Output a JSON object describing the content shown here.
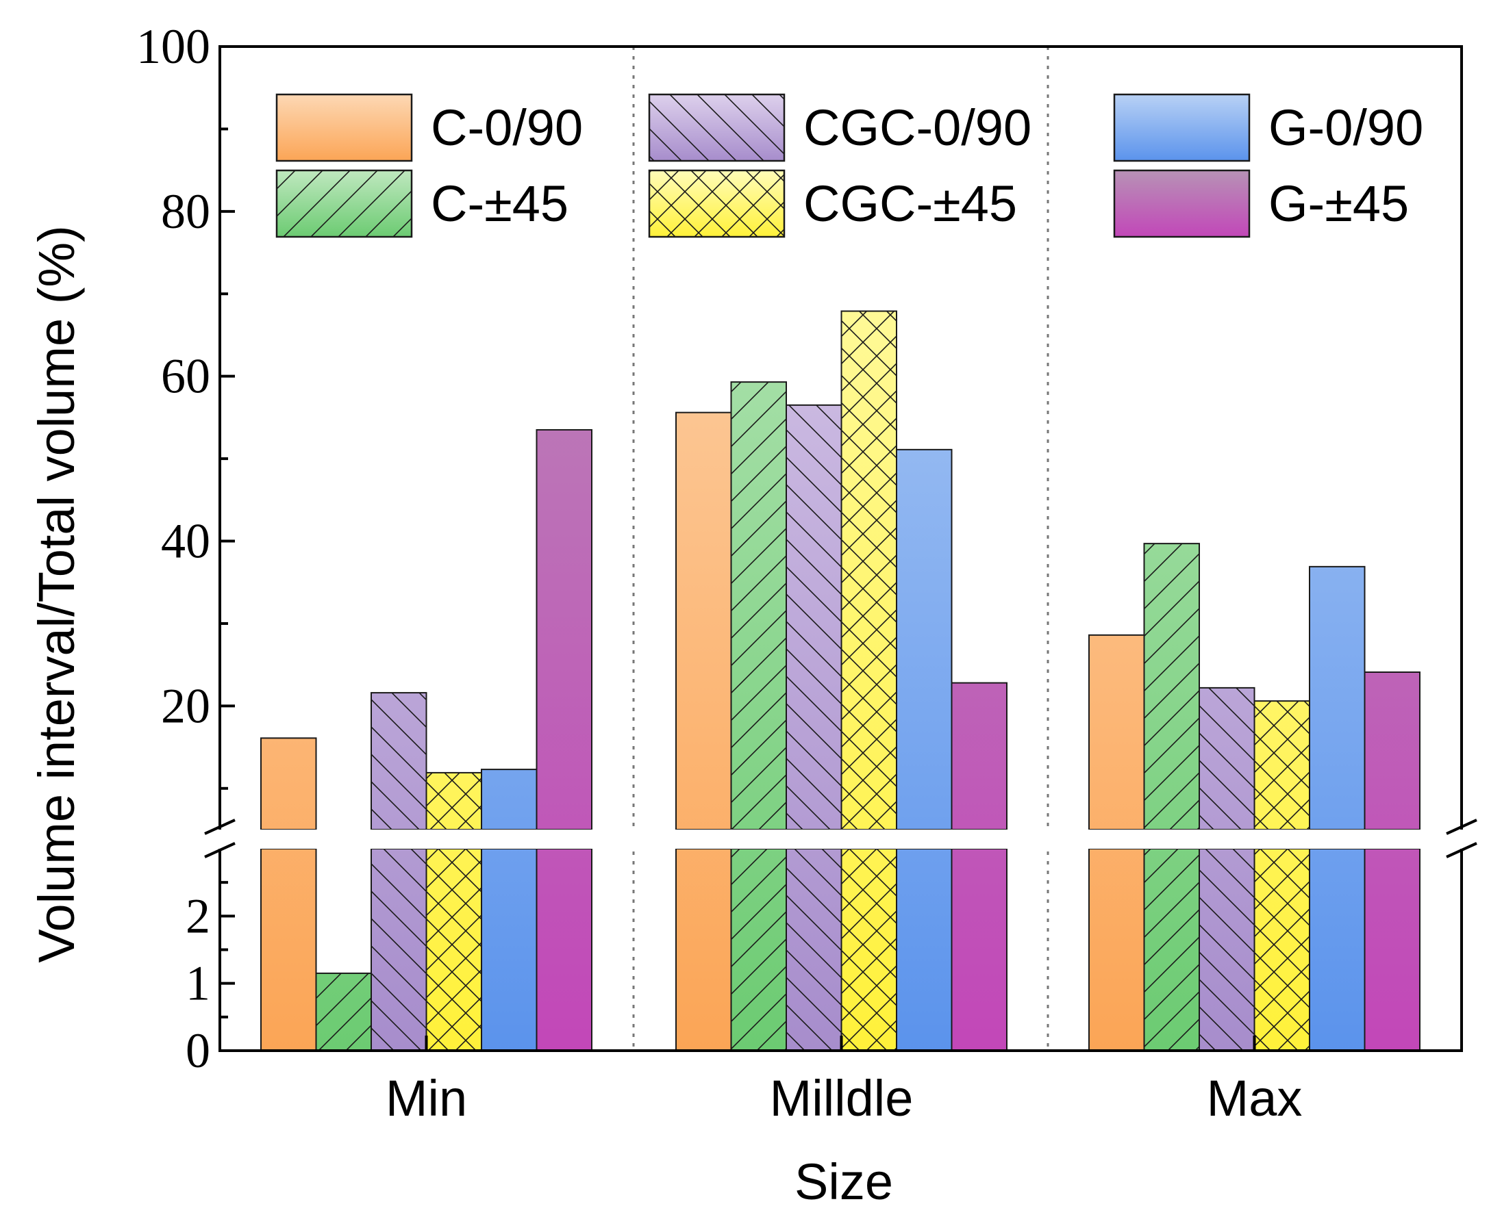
{
  "chart_data": {
    "type": "bar",
    "title": "",
    "xlabel": "Size",
    "ylabel": "Volume interval/Total volume (%)",
    "categories": [
      "Min",
      "Milldle",
      "Max"
    ],
    "axis_break": {
      "lower_range": [
        0,
        3
      ],
      "upper_range": [
        5,
        100
      ]
    },
    "lower_ticks": [
      "0",
      "1",
      "2"
    ],
    "upper_ticks": [
      "20",
      "40",
      "60",
      "80",
      "100"
    ],
    "grid": false,
    "legend_position": "top",
    "series": [
      {
        "name": "C-0/90",
        "values": [
          16.1,
          55.6,
          28.6
        ],
        "pattern": "none",
        "color_top": "#fdd8b4",
        "color_bottom": "#fba556"
      },
      {
        "name": "C-±45",
        "values": [
          1.15,
          59.3,
          39.7
        ],
        "pattern": "diagonal-up",
        "color_top": "#bfe8bf",
        "color_bottom": "#6ccb72"
      },
      {
        "name": "CGC-0/90",
        "values": [
          21.6,
          56.5,
          22.2
        ],
        "pattern": "diagonal-down",
        "color_top": "#ddd0ec",
        "color_bottom": "#a78dcc"
      },
      {
        "name": "CGC-±45",
        "values": [
          11.9,
          67.9,
          20.6
        ],
        "pattern": "crosshatch",
        "color_top": "#fffcb8",
        "color_bottom": "#fff13a"
      },
      {
        "name": "G-0/90",
        "values": [
          12.3,
          51.1,
          36.9
        ],
        "pattern": "none",
        "color_top": "#b8d1f5",
        "color_bottom": "#5b93ec"
      },
      {
        "name": "G-±45",
        "values": [
          53.5,
          22.8,
          24.1
        ],
        "pattern": "none",
        "color_top": "#b792b6",
        "color_bottom": "#c247b8"
      }
    ]
  }
}
